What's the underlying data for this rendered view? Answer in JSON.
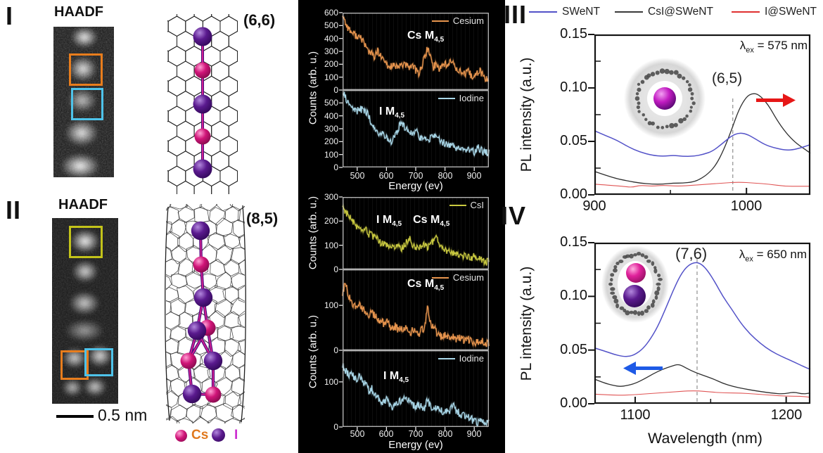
{
  "panel_I": {
    "label": "I",
    "title": "HAADF",
    "chirality": "(6,6)",
    "model_atoms": [
      "I",
      "Cs",
      "I",
      "Cs",
      "I"
    ]
  },
  "panel_II": {
    "label": "II",
    "title": "HAADF",
    "chirality": "(8,5)",
    "scalebar_label": "0.5 nm",
    "model_atoms": [
      "I",
      "Cs",
      "I",
      "Cs",
      "I",
      "Cs",
      "I",
      "I",
      "Cs"
    ]
  },
  "atom_legend": [
    {
      "symbol": "Cs",
      "sphere_color": "#d01478",
      "label_color": "#e0791f"
    },
    {
      "symbol": "I",
      "sphere_color": "#5a1a8e",
      "label_color": "#cc2fd0"
    }
  ],
  "eels": {
    "ylabel": "Counts (arb. u.)",
    "xlabel": "Energy (ev)",
    "xticks": [
      500,
      600,
      700,
      800,
      900
    ],
    "xrange": [
      450,
      950
    ],
    "plots": [
      {
        "name": "cesium-top",
        "legend": "Cesium",
        "color": "#e8954e",
        "ymax": 600,
        "yticks": [
          600,
          500,
          400,
          300,
          200,
          100,
          0
        ],
        "annotations": [
          {
            "main": "Cs M",
            "sub": "4,5"
          }
        ],
        "series": {
          "x0": 450,
          "dx": 10,
          "y": [
            590,
            520,
            480,
            450,
            430,
            420,
            400,
            390,
            330,
            300,
            280,
            255,
            300,
            260,
            230,
            200,
            170,
            200,
            180,
            165,
            205,
            195,
            185,
            175,
            200,
            150,
            130,
            180,
            250,
            320,
            260,
            180,
            200,
            170,
            190,
            210,
            180,
            230,
            200,
            170,
            150,
            130,
            120,
            140,
            110,
            95,
            130,
            150,
            110,
            80,
            85
          ]
        }
      },
      {
        "name": "iodine-top",
        "legend": "Iodine",
        "color": "#a9d7e8",
        "ymax": 600,
        "yticks": [
          500,
          400,
          300,
          200,
          100,
          0
        ],
        "annotations": [
          {
            "main": "I M",
            "sub": "4,5"
          }
        ],
        "series": {
          "x0": 450,
          "dx": 10,
          "y": [
            580,
            540,
            500,
            470,
            450,
            440,
            450,
            445,
            430,
            400,
            330,
            300,
            280,
            250,
            270,
            230,
            200,
            210,
            240,
            290,
            360,
            320,
            310,
            280,
            250,
            300,
            250,
            220,
            240,
            210,
            230,
            250,
            230,
            220,
            200,
            190,
            170,
            180,
            160,
            155,
            165,
            150,
            140,
            130,
            125,
            120,
            160,
            140,
            120,
            110,
            115
          ]
        }
      },
      {
        "name": "csi",
        "legend": "CsI",
        "color": "#c9c940",
        "ymax": 300,
        "yticks": [
          300,
          200,
          100,
          0
        ],
        "annotations": [
          {
            "main": "I M",
            "sub": "4,5"
          },
          {
            "main": "Cs M",
            "sub": "4,5"
          }
        ],
        "series": {
          "x0": 450,
          "dx": 10,
          "y": [
            265,
            240,
            225,
            205,
            190,
            175,
            160,
            150,
            170,
            145,
            140,
            130,
            125,
            110,
            105,
            100,
            95,
            100,
            90,
            95,
            85,
            100,
            115,
            125,
            100,
            95,
            90,
            100,
            105,
            90,
            100,
            120,
            130,
            100,
            90,
            85,
            70,
            75,
            65,
            70,
            60,
            55,
            60,
            50,
            45,
            55,
            40,
            45,
            35,
            30,
            32
          ]
        }
      },
      {
        "name": "cesium-bottom",
        "legend": "Cesium",
        "color": "#e8954e",
        "ymax": 180,
        "yticks": [
          100,
          0
        ],
        "annotations": [
          {
            "main": "Cs M",
            "sub": "4,5"
          }
        ],
        "series": {
          "x0": 450,
          "dx": 10,
          "y": [
            125,
            150,
            120,
            110,
            100,
            95,
            105,
            90,
            85,
            80,
            85,
            75,
            70,
            65,
            60,
            65,
            55,
            50,
            55,
            45,
            50,
            45,
            50,
            40,
            45,
            40,
            35,
            45,
            50,
            95,
            60,
            55,
            40,
            35,
            30,
            35,
            30,
            25,
            30,
            25,
            30,
            25,
            20,
            25,
            20,
            15,
            20,
            15,
            20,
            15,
            18
          ]
        }
      },
      {
        "name": "iodine-bottom",
        "legend": "Iodine",
        "color": "#a9d7e8",
        "ymax": 170,
        "yticks": [
          100,
          0
        ],
        "annotations": [
          {
            "main": "I M",
            "sub": "4,5"
          }
        ],
        "series": {
          "x0": 450,
          "dx": 10,
          "y": [
            135,
            125,
            115,
            120,
            110,
            105,
            115,
            100,
            95,
            80,
            85,
            70,
            65,
            60,
            55,
            60,
            50,
            45,
            50,
            55,
            60,
            62,
            58,
            60,
            50,
            45,
            50,
            45,
            40,
            60,
            45,
            40,
            45,
            40,
            35,
            38,
            30,
            40,
            45,
            35,
            30,
            28,
            25,
            22,
            18,
            12,
            10,
            15,
            12,
            10,
            14
          ]
        }
      }
    ]
  },
  "pl": {
    "ylabel": "PL intensity (a.u.)",
    "legend": [
      {
        "label": "SWeNT",
        "color": "#5352c8"
      },
      {
        "label": "CsI@SWeNT",
        "color": "#3a3a3a"
      },
      {
        "label": "I@SWeNT",
        "color": "#e03030"
      }
    ],
    "panels": [
      {
        "label": "III",
        "lambda": {
          "pre": "λ",
          "sub": "ex",
          "post": " = 575 nm"
        },
        "peak_label": "(6,5)",
        "ylim": [
          0,
          0.15
        ],
        "yticks": [
          "0.15",
          "0.10",
          "0.05",
          "0.00"
        ],
        "xticks": [
          "900",
          "1000"
        ],
        "xtick_vals": [
          900,
          1000
        ],
        "minor_xticks": [
          950
        ],
        "xrange": [
          900,
          1042
        ],
        "dashed_x": 991,
        "xlabel": "",
        "series": [
          {
            "name": "SWeNT",
            "color": "#5352c8",
            "width": 1.5,
            "points": [
              [
                900,
                0.06
              ],
              [
                908,
                0.055
              ],
              [
                915,
                0.051
              ],
              [
                922,
                0.045
              ],
              [
                930,
                0.04
              ],
              [
                938,
                0.037
              ],
              [
                945,
                0.036
              ],
              [
                952,
                0.037
              ],
              [
                958,
                0.036
              ],
              [
                965,
                0.036
              ],
              [
                972,
                0.038
              ],
              [
                978,
                0.041
              ],
              [
                985,
                0.049
              ],
              [
                990,
                0.055
              ],
              [
                995,
                0.058
              ],
              [
                1000,
                0.057
              ],
              [
                1005,
                0.053
              ],
              [
                1012,
                0.047
              ],
              [
                1018,
                0.044
              ],
              [
                1025,
                0.042
              ],
              [
                1030,
                0.042
              ],
              [
                1036,
                0.044
              ],
              [
                1042,
                0.047
              ]
            ]
          },
          {
            "name": "CsI@SWeNT",
            "color": "#2e2e2e",
            "width": 1.3,
            "points": [
              [
                900,
                0.022
              ],
              [
                908,
                0.018
              ],
              [
                915,
                0.015
              ],
              [
                922,
                0.013
              ],
              [
                930,
                0.011
              ],
              [
                938,
                0.01
              ],
              [
                945,
                0.01
              ],
              [
                952,
                0.011
              ],
              [
                958,
                0.011
              ],
              [
                965,
                0.012
              ],
              [
                970,
                0.015
              ],
              [
                975,
                0.02
              ],
              [
                980,
                0.028
              ],
              [
                985,
                0.042
              ],
              [
                990,
                0.06
              ],
              [
                995,
                0.08
              ],
              [
                1000,
                0.092
              ],
              [
                1004,
                0.095
              ],
              [
                1008,
                0.094
              ],
              [
                1014,
                0.085
              ],
              [
                1020,
                0.07
              ],
              [
                1026,
                0.058
              ],
              [
                1032,
                0.049
              ],
              [
                1038,
                0.043
              ],
              [
                1042,
                0.039
              ]
            ]
          },
          {
            "name": "I@SWeNT",
            "color": "#e05555",
            "width": 1.1,
            "points": [
              [
                900,
                0.01
              ],
              [
                910,
                0.009
              ],
              [
                918,
                0.008
              ],
              [
                925,
                0.007
              ],
              [
                930,
                0.009
              ],
              [
                938,
                0.008
              ],
              [
                945,
                0.009
              ],
              [
                955,
                0.008
              ],
              [
                965,
                0.009
              ],
              [
                975,
                0.01
              ],
              [
                985,
                0.011
              ],
              [
                995,
                0.012
              ],
              [
                1005,
                0.011
              ],
              [
                1015,
                0.01
              ],
              [
                1025,
                0.008
              ],
              [
                1035,
                0.008
              ],
              [
                1042,
                0.008
              ]
            ]
          }
        ]
      },
      {
        "label": "IV",
        "lambda": {
          "pre": "λ",
          "sub": "ex",
          "post": " = 650 nm"
        },
        "peak_label": "(7,6)",
        "ylim": [
          0,
          0.15
        ],
        "yticks": [
          "0.15",
          "0.10",
          "0.05",
          "0.00"
        ],
        "xticks": [
          "1100",
          "1200"
        ],
        "xtick_vals": [
          1100,
          1200
        ],
        "minor_xticks": [
          1150
        ],
        "xrange": [
          1073,
          1216
        ],
        "dashed_x": 1141,
        "xlabel": "Wavelength (nm)",
        "series": [
          {
            "name": "SWeNT",
            "color": "#5352c8",
            "width": 1.5,
            "points": [
              [
                1073,
                0.052
              ],
              [
                1080,
                0.049
              ],
              [
                1086,
                0.046
              ],
              [
                1092,
                0.044
              ],
              [
                1096,
                0.044
              ],
              [
                1100,
                0.046
              ],
              [
                1105,
                0.051
              ],
              [
                1110,
                0.06
              ],
              [
                1115,
                0.072
              ],
              [
                1120,
                0.088
              ],
              [
                1125,
                0.105
              ],
              [
                1130,
                0.12
              ],
              [
                1135,
                0.129
              ],
              [
                1140,
                0.132
              ],
              [
                1144,
                0.13
              ],
              [
                1148,
                0.124
              ],
              [
                1153,
                0.113
              ],
              [
                1158,
                0.1
              ],
              [
                1164,
                0.088
              ],
              [
                1170,
                0.075
              ],
              [
                1176,
                0.065
              ],
              [
                1183,
                0.056
              ],
              [
                1190,
                0.049
              ],
              [
                1197,
                0.044
              ],
              [
                1205,
                0.039
              ],
              [
                1211,
                0.035
              ],
              [
                1216,
                0.032
              ]
            ]
          },
          {
            "name": "CsI@SWeNT",
            "color": "#2e2e2e",
            "width": 1.3,
            "points": [
              [
                1073,
                0.023
              ],
              [
                1080,
                0.019
              ],
              [
                1086,
                0.017
              ],
              [
                1090,
                0.016
              ],
              [
                1095,
                0.017
              ],
              [
                1100,
                0.019
              ],
              [
                1106,
                0.023
              ],
              [
                1112,
                0.028
              ],
              [
                1118,
                0.032
              ],
              [
                1124,
                0.035
              ],
              [
                1129,
                0.037
              ],
              [
                1134,
                0.033
              ],
              [
                1140,
                0.029
              ],
              [
                1146,
                0.026
              ],
              [
                1152,
                0.023
              ],
              [
                1158,
                0.019
              ],
              [
                1165,
                0.016
              ],
              [
                1172,
                0.014
              ],
              [
                1180,
                0.012
              ],
              [
                1190,
                0.01
              ],
              [
                1198,
                0.009
              ],
              [
                1205,
                0.011
              ],
              [
                1211,
                0.009
              ],
              [
                1216,
                0.01
              ]
            ]
          },
          {
            "name": "I@SWeNT",
            "color": "#e05555",
            "width": 1.1,
            "points": [
              [
                1073,
                0.009
              ],
              [
                1085,
                0.008
              ],
              [
                1095,
                0.008
              ],
              [
                1105,
                0.009
              ],
              [
                1115,
                0.01
              ],
              [
                1125,
                0.011
              ],
              [
                1135,
                0.012
              ],
              [
                1142,
                0.012
              ],
              [
                1150,
                0.011
              ],
              [
                1160,
                0.01
              ],
              [
                1170,
                0.01
              ],
              [
                1180,
                0.009
              ],
              [
                1190,
                0.008
              ],
              [
                1200,
                0.007
              ],
              [
                1210,
                0.007
              ],
              [
                1216,
                0.006
              ]
            ]
          }
        ]
      }
    ]
  }
}
